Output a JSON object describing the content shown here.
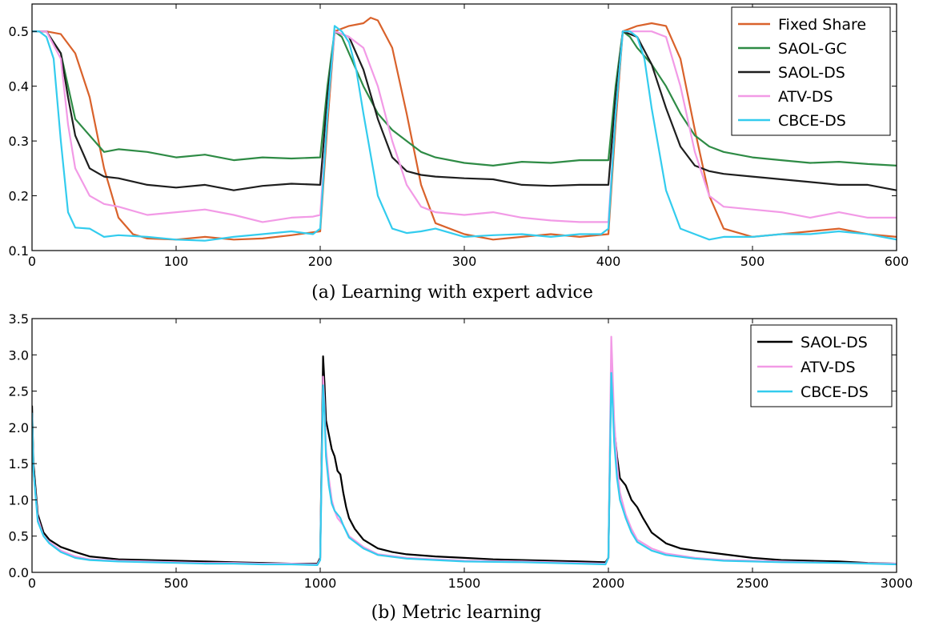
{
  "chart_data": [
    {
      "type": "line",
      "caption": "(a) Learning with expert advice",
      "title": "",
      "xlabel": "",
      "ylabel": "",
      "xlim": [
        0,
        600
      ],
      "ylim": [
        0.1,
        0.55
      ],
      "xticks": [
        0,
        100,
        200,
        300,
        400,
        500,
        600
      ],
      "xtick_labels": [
        "0",
        "100",
        "200",
        "300",
        "400",
        "500",
        "600"
      ],
      "yticks": [
        0.1,
        0.2,
        0.3,
        0.4,
        0.5
      ],
      "ytick_labels": [
        "0.1",
        "0.2",
        "0.3",
        "0.4",
        "0.5"
      ],
      "grid": false,
      "legend_position": "top-right",
      "series": [
        {
          "name": "Fixed Share",
          "color": "#d9622b",
          "x": [
            0,
            10,
            20,
            30,
            40,
            50,
            60,
            70,
            80,
            100,
            120,
            140,
            160,
            180,
            200,
            205,
            210,
            220,
            230,
            235,
            240,
            250,
            260,
            270,
            280,
            300,
            320,
            340,
            360,
            380,
            400,
            405,
            410,
            420,
            430,
            440,
            450,
            460,
            470,
            480,
            500,
            520,
            540,
            560,
            580,
            600
          ],
          "y": [
            0.5,
            0.5,
            0.495,
            0.46,
            0.38,
            0.25,
            0.16,
            0.13,
            0.122,
            0.12,
            0.125,
            0.12,
            0.122,
            0.128,
            0.135,
            0.33,
            0.5,
            0.51,
            0.515,
            0.525,
            0.52,
            0.47,
            0.35,
            0.22,
            0.15,
            0.13,
            0.12,
            0.125,
            0.13,
            0.125,
            0.13,
            0.33,
            0.5,
            0.51,
            0.515,
            0.51,
            0.45,
            0.32,
            0.2,
            0.14,
            0.125,
            0.13,
            0.135,
            0.14,
            0.13,
            0.125
          ]
        },
        {
          "name": "SAOL-GC",
          "color": "#2e8b45",
          "x": [
            0,
            10,
            20,
            25,
            30,
            40,
            50,
            60,
            80,
            100,
            120,
            140,
            160,
            180,
            200,
            205,
            210,
            215,
            220,
            230,
            240,
            250,
            260,
            270,
            280,
            300,
            320,
            340,
            360,
            380,
            400,
            405,
            410,
            415,
            420,
            430,
            440,
            450,
            460,
            470,
            480,
            500,
            520,
            540,
            560,
            580,
            600
          ],
          "y": [
            0.5,
            0.5,
            0.46,
            0.4,
            0.34,
            0.31,
            0.28,
            0.285,
            0.28,
            0.27,
            0.275,
            0.265,
            0.27,
            0.268,
            0.27,
            0.4,
            0.5,
            0.49,
            0.46,
            0.4,
            0.35,
            0.32,
            0.3,
            0.28,
            0.27,
            0.26,
            0.255,
            0.262,
            0.26,
            0.265,
            0.265,
            0.4,
            0.5,
            0.49,
            0.47,
            0.44,
            0.4,
            0.35,
            0.31,
            0.29,
            0.28,
            0.27,
            0.265,
            0.26,
            0.262,
            0.258,
            0.255
          ]
        },
        {
          "name": "SAOL-DS",
          "color": "#1e1e1e",
          "x": [
            0,
            10,
            20,
            25,
            30,
            40,
            50,
            60,
            80,
            100,
            120,
            140,
            160,
            180,
            200,
            205,
            210,
            220,
            230,
            240,
            250,
            260,
            270,
            280,
            300,
            320,
            340,
            360,
            380,
            400,
            405,
            410,
            420,
            430,
            440,
            450,
            460,
            470,
            480,
            500,
            520,
            540,
            560,
            580,
            600
          ],
          "y": [
            0.5,
            0.5,
            0.46,
            0.38,
            0.31,
            0.25,
            0.235,
            0.232,
            0.22,
            0.215,
            0.22,
            0.21,
            0.218,
            0.222,
            0.22,
            0.38,
            0.5,
            0.49,
            0.43,
            0.34,
            0.27,
            0.245,
            0.238,
            0.235,
            0.232,
            0.23,
            0.22,
            0.218,
            0.22,
            0.22,
            0.38,
            0.5,
            0.49,
            0.44,
            0.36,
            0.29,
            0.255,
            0.245,
            0.24,
            0.235,
            0.23,
            0.225,
            0.22,
            0.22,
            0.21
          ]
        },
        {
          "name": "ATV-DS",
          "color": "#f29ae6",
          "x": [
            0,
            10,
            20,
            25,
            30,
            40,
            50,
            60,
            80,
            100,
            120,
            140,
            160,
            180,
            195,
            200,
            205,
            210,
            220,
            230,
            240,
            250,
            260,
            270,
            280,
            300,
            320,
            340,
            360,
            380,
            400,
            405,
            410,
            420,
            430,
            440,
            450,
            460,
            470,
            480,
            500,
            520,
            540,
            560,
            580,
            600
          ],
          "y": [
            0.5,
            0.5,
            0.45,
            0.33,
            0.25,
            0.2,
            0.185,
            0.18,
            0.165,
            0.17,
            0.175,
            0.165,
            0.152,
            0.16,
            0.162,
            0.165,
            0.35,
            0.5,
            0.49,
            0.47,
            0.4,
            0.3,
            0.22,
            0.18,
            0.17,
            0.165,
            0.17,
            0.16,
            0.155,
            0.152,
            0.152,
            0.35,
            0.5,
            0.5,
            0.5,
            0.49,
            0.4,
            0.28,
            0.2,
            0.18,
            0.175,
            0.17,
            0.16,
            0.17,
            0.16,
            0.16
          ]
        },
        {
          "name": "CBCE-DS",
          "color": "#33ccee",
          "x": [
            0,
            5,
            10,
            15,
            20,
            25,
            30,
            40,
            50,
            60,
            80,
            100,
            120,
            140,
            160,
            180,
            195,
            200,
            205,
            210,
            215,
            220,
            225,
            230,
            240,
            250,
            260,
            270,
            280,
            300,
            320,
            340,
            360,
            380,
            395,
            400,
            405,
            410,
            415,
            420,
            425,
            430,
            440,
            450,
            460,
            470,
            480,
            500,
            520,
            540,
            560,
            580,
            600
          ],
          "y": [
            0.5,
            0.5,
            0.49,
            0.45,
            0.3,
            0.17,
            0.142,
            0.14,
            0.125,
            0.128,
            0.125,
            0.12,
            0.118,
            0.125,
            0.13,
            0.135,
            0.13,
            0.14,
            0.35,
            0.51,
            0.5,
            0.48,
            0.43,
            0.35,
            0.2,
            0.14,
            0.132,
            0.135,
            0.14,
            0.125,
            0.128,
            0.13,
            0.125,
            0.13,
            0.13,
            0.14,
            0.35,
            0.5,
            0.5,
            0.49,
            0.45,
            0.36,
            0.21,
            0.14,
            0.13,
            0.12,
            0.125,
            0.125,
            0.13,
            0.13,
            0.135,
            0.13,
            0.12
          ]
        }
      ]
    },
    {
      "type": "line",
      "caption": "(b) Metric learning",
      "title": "",
      "xlabel": "",
      "ylabel": "",
      "xlim": [
        0,
        3000
      ],
      "ylim": [
        0,
        3.5
      ],
      "xticks": [
        0,
        500,
        1000,
        1500,
        2000,
        2500,
        3000
      ],
      "xtick_labels": [
        "0",
        "500",
        "1000",
        "1500",
        "2000",
        "2500",
        "3000"
      ],
      "yticks": [
        0,
        0.5,
        1,
        1.5,
        2,
        2.5,
        3,
        3.5
      ],
      "ytick_labels": [
        "0.0",
        "0.5",
        "1.0",
        "1.5",
        "2.0",
        "2.5",
        "3.0",
        "3.5"
      ],
      "grid": false,
      "legend_position": "top-right",
      "series": [
        {
          "name": "SAOL-DS",
          "color": "#000000",
          "x": [
            0,
            5,
            20,
            40,
            60,
            100,
            150,
            200,
            250,
            300,
            400,
            500,
            600,
            700,
            800,
            900,
            990,
            1000,
            1010,
            1015,
            1020,
            1030,
            1040,
            1050,
            1060,
            1070,
            1080,
            1090,
            1100,
            1120,
            1150,
            1200,
            1250,
            1300,
            1400,
            1500,
            1600,
            1700,
            1800,
            1900,
            1990,
            2000,
            2010,
            2015,
            2020,
            2030,
            2040,
            2060,
            2080,
            2100,
            2120,
            2150,
            2200,
            2250,
            2300,
            2400,
            2500,
            2600,
            2700,
            2800,
            2900,
            3000
          ],
          "y": [
            2.3,
            1.5,
            0.8,
            0.55,
            0.45,
            0.35,
            0.28,
            0.22,
            0.2,
            0.18,
            0.17,
            0.16,
            0.15,
            0.14,
            0.13,
            0.12,
            0.12,
            0.2,
            2.98,
            2.6,
            2.1,
            1.9,
            1.7,
            1.6,
            1.4,
            1.35,
            1.1,
            0.9,
            0.75,
            0.6,
            0.45,
            0.33,
            0.28,
            0.25,
            0.22,
            0.2,
            0.18,
            0.17,
            0.16,
            0.15,
            0.14,
            0.2,
            2.86,
            2.5,
            2.0,
            1.6,
            1.3,
            1.2,
            1.0,
            0.9,
            0.75,
            0.55,
            0.4,
            0.33,
            0.3,
            0.25,
            0.2,
            0.17,
            0.16,
            0.15,
            0.13,
            0.12
          ]
        },
        {
          "name": "ATV-DS",
          "color": "#f29ae6",
          "x": [
            0,
            5,
            20,
            40,
            60,
            100,
            150,
            200,
            300,
            400,
            500,
            600,
            700,
            800,
            900,
            990,
            1000,
            1010,
            1015,
            1020,
            1030,
            1040,
            1050,
            1060,
            1070,
            1080,
            1100,
            1150,
            1200,
            1300,
            1400,
            1500,
            1700,
            1900,
            1990,
            2000,
            2010,
            2015,
            2020,
            2030,
            2040,
            2060,
            2080,
            2100,
            2150,
            2200,
            2300,
            2400,
            2600,
            2800,
            3000
          ],
          "y": [
            2.2,
            1.4,
            0.75,
            0.5,
            0.42,
            0.3,
            0.22,
            0.18,
            0.16,
            0.15,
            0.14,
            0.13,
            0.13,
            0.12,
            0.12,
            0.11,
            0.18,
            2.7,
            2.3,
            1.7,
            1.3,
            1.0,
            0.85,
            0.75,
            0.7,
            0.65,
            0.5,
            0.35,
            0.25,
            0.2,
            0.18,
            0.16,
            0.15,
            0.13,
            0.12,
            0.2,
            3.25,
            2.7,
            2.1,
            1.5,
            1.1,
            0.8,
            0.6,
            0.45,
            0.33,
            0.26,
            0.2,
            0.17,
            0.15,
            0.13,
            0.12
          ]
        },
        {
          "name": "CBCE-DS",
          "color": "#33ccee",
          "x": [
            0,
            5,
            20,
            40,
            60,
            100,
            150,
            200,
            300,
            400,
            500,
            600,
            700,
            800,
            900,
            990,
            1000,
            1010,
            1015,
            1020,
            1030,
            1040,
            1050,
            1060,
            1070,
            1080,
            1100,
            1150,
            1200,
            1300,
            1400,
            1500,
            1700,
            1900,
            1990,
            2000,
            2010,
            2015,
            2020,
            2030,
            2040,
            2060,
            2080,
            2100,
            2150,
            2200,
            2300,
            2400,
            2600,
            2800,
            3000
          ],
          "y": [
            2.2,
            1.4,
            0.7,
            0.5,
            0.4,
            0.28,
            0.2,
            0.17,
            0.15,
            0.14,
            0.13,
            0.12,
            0.12,
            0.11,
            0.11,
            0.1,
            0.17,
            2.58,
            2.2,
            1.6,
            1.2,
            0.95,
            0.85,
            0.8,
            0.75,
            0.65,
            0.48,
            0.33,
            0.24,
            0.19,
            0.17,
            0.15,
            0.14,
            0.12,
            0.11,
            0.2,
            2.75,
            2.3,
            1.8,
            1.3,
            1.0,
            0.75,
            0.55,
            0.42,
            0.3,
            0.24,
            0.19,
            0.16,
            0.14,
            0.13,
            0.11
          ]
        }
      ]
    }
  ]
}
